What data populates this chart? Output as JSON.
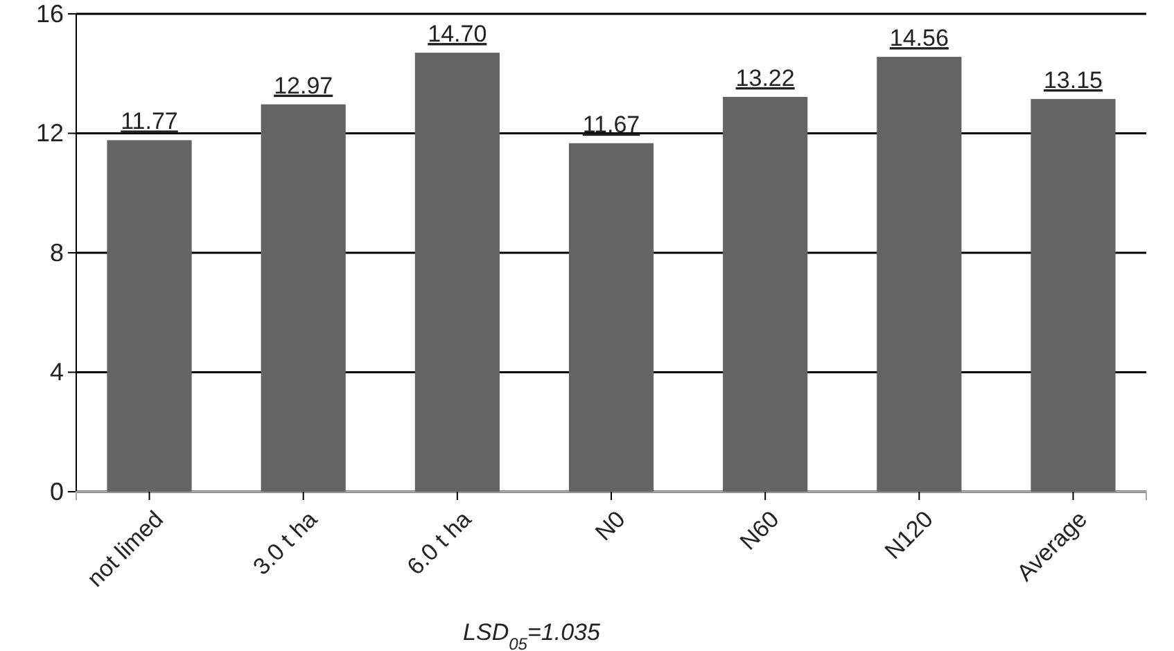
{
  "chart_data": {
    "type": "bar",
    "categories": [
      "not limed",
      "3.0 t ha",
      "6.0 t ha",
      "N0",
      "N60",
      "N120",
      "Average"
    ],
    "values": [
      11.77,
      12.97,
      14.7,
      11.67,
      13.22,
      14.56,
      13.15
    ],
    "color": "#646464",
    "ylim": [
      0,
      16
    ],
    "yticks": [
      0,
      4,
      8,
      12,
      16
    ],
    "grid": "y",
    "value_labels": [
      "11.77",
      "12.97",
      "14.70",
      "11.67",
      "13.22",
      "14.56",
      "13.15"
    ],
    "annotations": [
      "LSD$_{05}$=1.035"
    ]
  }
}
